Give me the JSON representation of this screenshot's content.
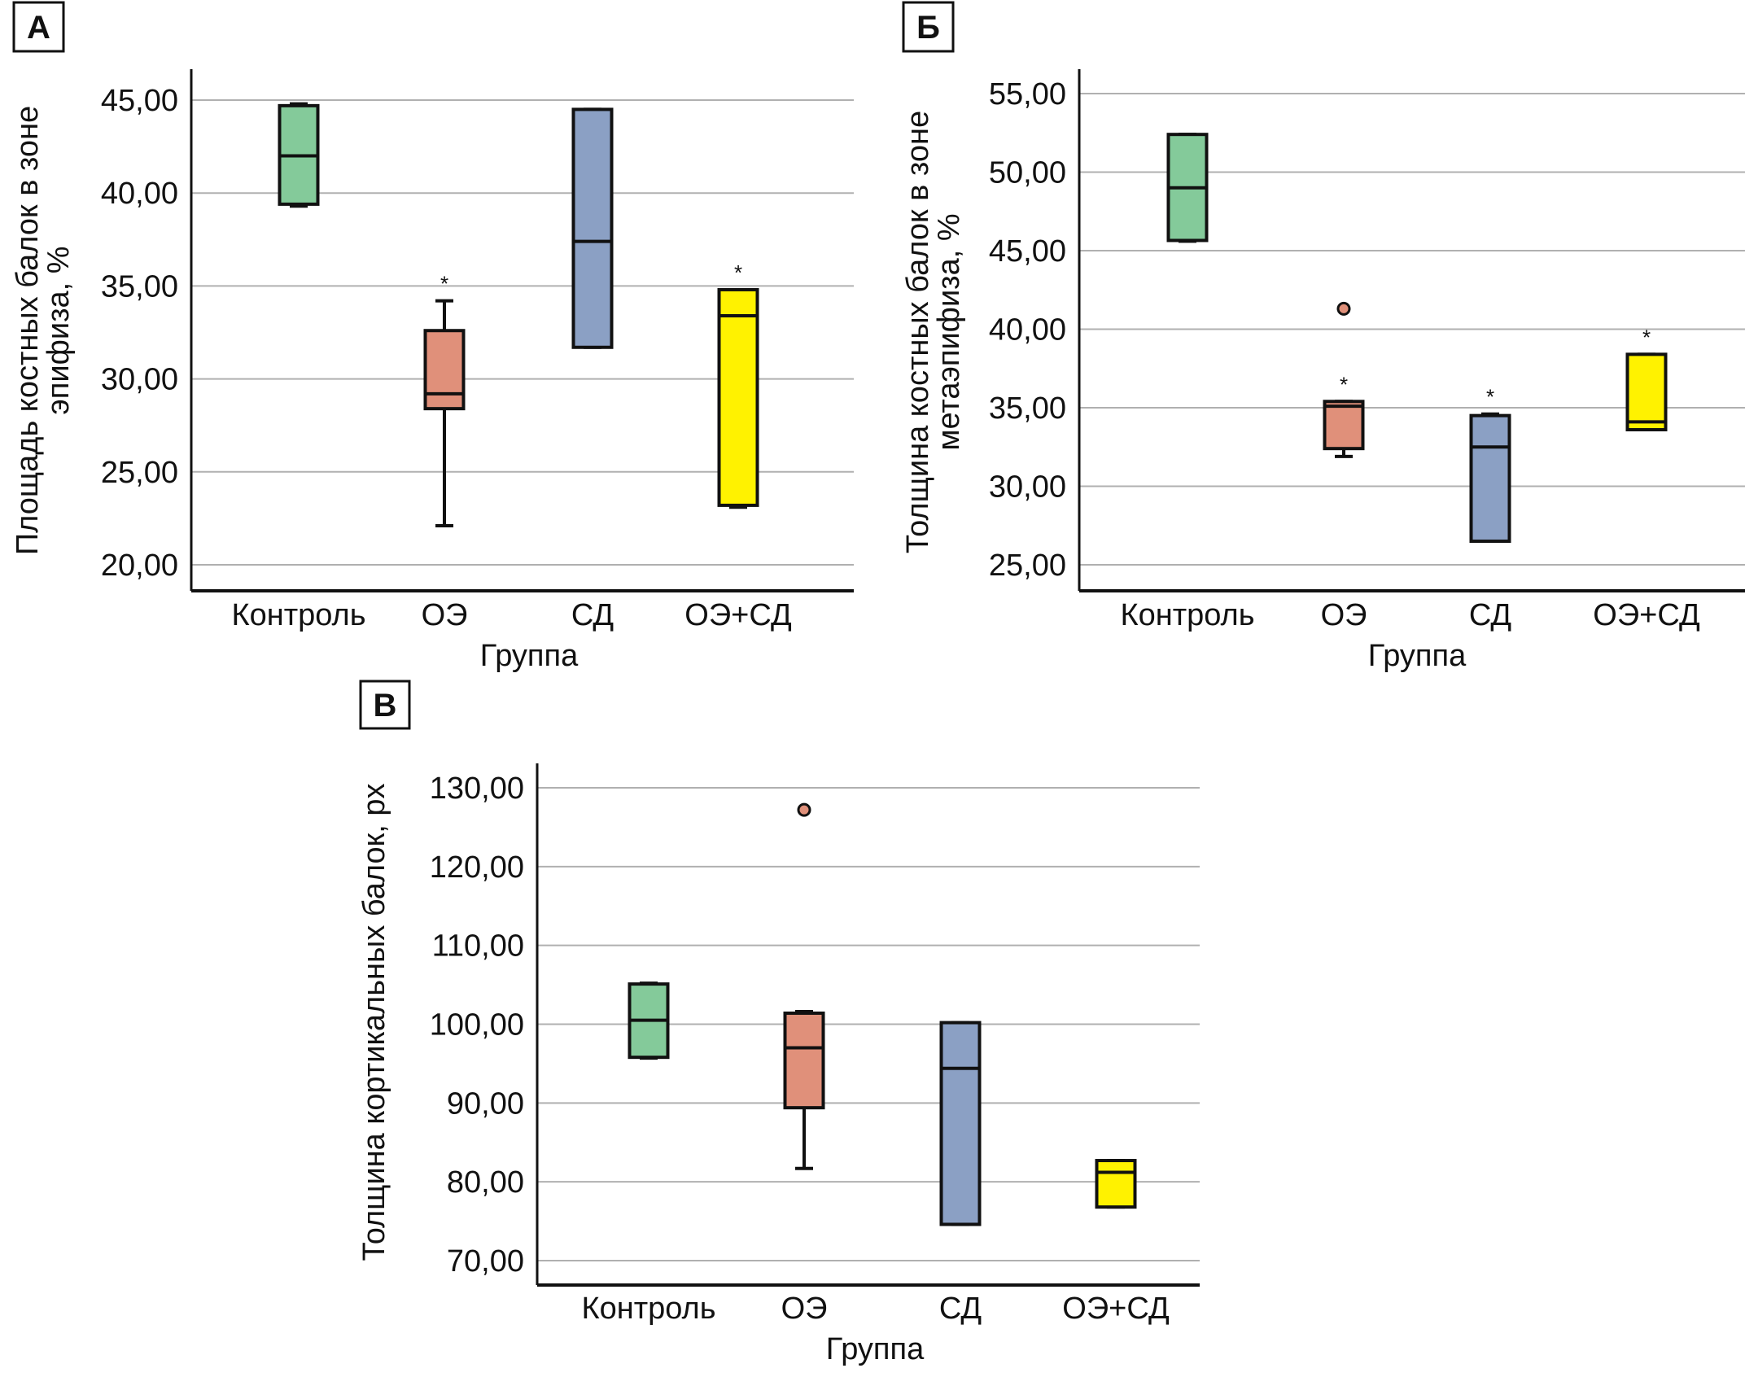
{
  "chart_data": [
    {
      "type": "box",
      "panel_label": "А",
      "title": "",
      "xlabel": "Группа",
      "ylabel_lines": [
        "Площадь костных балок в зоне",
        "эпифиза, %"
      ],
      "ylabel": "Площадь костных балок в зоне эпифиза, %",
      "yticks": [
        "20,00",
        "25,00",
        "30,00",
        "35,00",
        "40,00",
        "45,00"
      ],
      "ytick_values": [
        20,
        25,
        30,
        35,
        40,
        45
      ],
      "ylim": [
        18.6,
        46.3
      ],
      "grid": true,
      "categories": [
        "Контроль",
        "ОЭ",
        "СД",
        "ОЭ+СД"
      ],
      "colors": [
        "#84CA9A",
        "#E0907A",
        "#8BA0C4",
        "#FFF200"
      ],
      "boxes": [
        {
          "group": "Контроль",
          "whisker_low": 39.3,
          "q1": 39.4,
          "median": 42.0,
          "q3": 44.7,
          "whisker_high": 44.8,
          "outliers": [],
          "significant": false
        },
        {
          "group": "ОЭ",
          "whisker_low": 22.1,
          "q1": 28.4,
          "median": 29.2,
          "q3": 32.6,
          "whisker_high": 34.2,
          "outliers": [],
          "significant": true
        },
        {
          "group": "СД",
          "whisker_low": 31.7,
          "q1": 31.7,
          "median": 37.4,
          "q3": 44.5,
          "whisker_high": 44.5,
          "outliers": [],
          "significant": false
        },
        {
          "group": "ОЭ+СД",
          "whisker_low": 23.1,
          "q1": 23.2,
          "median": 33.4,
          "q3": 34.8,
          "whisker_high": 34.8,
          "outliers": [],
          "significant": true
        }
      ],
      "significance_marker": "*"
    },
    {
      "type": "box",
      "panel_label": "Б",
      "title": "",
      "xlabel": "Группа",
      "ylabel_lines": [
        "Толщина костных балок в зоне",
        "метаэпифиза, %"
      ],
      "ylabel": "Толщина костных балок в зоне метаэпифиза, %",
      "yticks": [
        "25,00",
        "30,00",
        "35,00",
        "40,00",
        "45,00",
        "50,00",
        "55,00"
      ],
      "ytick_values": [
        25,
        30,
        35,
        40,
        45,
        50,
        55
      ],
      "ylim": [
        23.3,
        56.9
      ],
      "grid": true,
      "categories": [
        "Контроль",
        "ОЭ",
        "СД",
        "ОЭ+СД"
      ],
      "colors": [
        "#84CA9A",
        "#E0907A",
        "#8BA0C4",
        "#FFF200"
      ],
      "boxes": [
        {
          "group": "Контроль",
          "whisker_low": 45.6,
          "q1": 45.65,
          "median": 49.0,
          "q3": 52.4,
          "whisker_high": 52.4,
          "outliers": [],
          "significant": false
        },
        {
          "group": "ОЭ",
          "whisker_low": 31.9,
          "q1": 32.4,
          "median": 35.1,
          "q3": 35.4,
          "whisker_high": 35.4,
          "outliers": [
            41.3
          ],
          "significant": true
        },
        {
          "group": "СД",
          "whisker_low": 26.5,
          "q1": 26.5,
          "median": 32.5,
          "q3": 34.5,
          "whisker_high": 34.6,
          "outliers": [],
          "significant": true
        },
        {
          "group": "ОЭ+СД",
          "whisker_low": 33.6,
          "q1": 33.6,
          "median": 34.1,
          "q3": 38.4,
          "whisker_high": 38.4,
          "outliers": [],
          "significant": true
        }
      ],
      "significance_marker": "*"
    },
    {
      "type": "box",
      "panel_label": "В",
      "title": "",
      "xlabel": "Группа",
      "ylabel_lines": [
        "Толщина кортикальных балок, px"
      ],
      "ylabel": "Толщина кортикальных балок, px",
      "yticks": [
        "70,00",
        "80,00",
        "90,00",
        "100,00",
        "110,00",
        "120,00",
        "130,00"
      ],
      "ytick_values": [
        70,
        80,
        90,
        100,
        110,
        120,
        130
      ],
      "ylim": [
        66.9,
        133.4
      ],
      "grid": true,
      "categories": [
        "Контроль",
        "ОЭ",
        "СД",
        "ОЭ+СД"
      ],
      "colors": [
        "#84CA9A",
        "#E0907A",
        "#8BA0C4",
        "#FFF200"
      ],
      "boxes": [
        {
          "group": "Контроль",
          "whisker_low": 95.7,
          "q1": 95.8,
          "median": 100.5,
          "q3": 105.1,
          "whisker_high": 105.2,
          "outliers": [],
          "significant": false
        },
        {
          "group": "ОЭ",
          "whisker_low": 81.7,
          "q1": 89.4,
          "median": 97.0,
          "q3": 101.4,
          "whisker_high": 101.6,
          "outliers": [
            127.2
          ],
          "significant": false
        },
        {
          "group": "СД",
          "whisker_low": 74.6,
          "q1": 74.6,
          "median": 94.4,
          "q3": 100.2,
          "whisker_high": 100.2,
          "outliers": [],
          "significant": false
        },
        {
          "group": "ОЭ+СД",
          "whisker_low": 76.8,
          "q1": 76.8,
          "median": 81.2,
          "q3": 82.7,
          "whisker_high": 82.7,
          "outliers": [],
          "significant": false
        }
      ],
      "significance_marker": "*"
    }
  ]
}
